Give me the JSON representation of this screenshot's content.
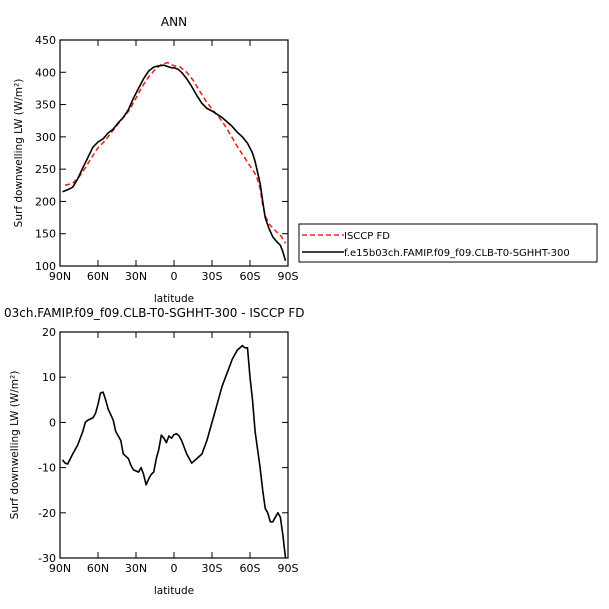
{
  "chart_data": [
    {
      "type": "line",
      "title": "ANN",
      "xlabel": "latitude",
      "ylabel": "Surf downwelling LW (W/m²)",
      "x_ticks": [
        "90N",
        "60N",
        "30N",
        "0",
        "30S",
        "60S",
        "90S"
      ],
      "x_tick_values": [
        90,
        60,
        30,
        0,
        -30,
        -60,
        -90
      ],
      "xlim": [
        90,
        -90
      ],
      "ylim": [
        100,
        450
      ],
      "y_ticks": [
        100,
        150,
        200,
        250,
        300,
        350,
        400,
        450
      ],
      "grid": false,
      "legend_placement": "right",
      "series": [
        {
          "name": "ISCCP FD",
          "color": "#e8261e",
          "dash": "dashed",
          "x": [
            86,
            80,
            75,
            70,
            65,
            60,
            55,
            50,
            45,
            40,
            35,
            30,
            25,
            20,
            15,
            10,
            5,
            0,
            -5,
            -10,
            -15,
            -20,
            -25,
            -30,
            -35,
            -40,
            -45,
            -50,
            -55,
            -60,
            -65,
            -68,
            -70,
            -72,
            -75,
            -80,
            -85,
            -88
          ],
          "y": [
            225,
            228,
            238,
            252,
            268,
            283,
            293,
            305,
            318,
            330,
            342,
            360,
            378,
            393,
            404,
            412,
            415,
            410,
            408,
            400,
            388,
            372,
            356,
            343,
            332,
            318,
            302,
            285,
            270,
            255,
            240,
            220,
            195,
            178,
            165,
            155,
            145,
            135
          ]
        },
        {
          "name": "f.e15b03ch.FAMIP.f09_f09.CLB-T0-SGHHT-300",
          "color": "#000000",
          "dash": "solid",
          "x": [
            88,
            84,
            80,
            76,
            72,
            68,
            64,
            60,
            56,
            52,
            48,
            44,
            40,
            36,
            32,
            28,
            24,
            20,
            16,
            12,
            8,
            5,
            2,
            0,
            -3,
            -6,
            -10,
            -14,
            -18,
            -22,
            -26,
            -30,
            -34,
            -38,
            -42,
            -46,
            -50,
            -54,
            -58,
            -62,
            -64,
            -66,
            -68,
            -70,
            -72,
            -75,
            -78,
            -81,
            -84,
            -86,
            -88
          ],
          "y": [
            215,
            218,
            222,
            235,
            252,
            268,
            284,
            292,
            297,
            306,
            312,
            322,
            330,
            342,
            360,
            375,
            390,
            402,
            408,
            410,
            411,
            409,
            407,
            407,
            405,
            400,
            390,
            378,
            364,
            352,
            344,
            340,
            335,
            330,
            323,
            316,
            307,
            300,
            290,
            275,
            262,
            245,
            228,
            200,
            175,
            158,
            145,
            138,
            132,
            122,
            108
          ]
        }
      ]
    },
    {
      "type": "line",
      "title": "03ch.FAMIP.f09_f09.CLB-T0-SGHHT-300 - ISCCP FD",
      "xlabel": "latitude",
      "ylabel": "Surf downwelling LW (W/m²)",
      "x_ticks": [
        "90N",
        "60N",
        "30N",
        "0",
        "30S",
        "60S",
        "90S"
      ],
      "x_tick_values": [
        90,
        60,
        30,
        0,
        -30,
        -60,
        -90
      ],
      "xlim": [
        90,
        -90
      ],
      "ylim": [
        -30,
        20
      ],
      "y_ticks": [
        -30,
        -20,
        -10,
        0,
        10,
        20
      ],
      "grid": false,
      "series": [
        {
          "color": "#000000",
          "dash": "solid",
          "x": [
            88,
            86,
            84,
            80,
            76,
            72,
            70,
            68,
            64,
            62,
            60,
            58,
            56,
            54,
            52,
            48,
            46,
            42,
            40,
            38,
            36,
            34,
            32,
            28,
            26,
            24,
            22,
            20,
            18,
            16,
            14,
            12,
            10,
            8,
            6,
            4,
            2,
            0,
            -2,
            -4,
            -6,
            -10,
            -14,
            -18,
            -22,
            -26,
            -30,
            -34,
            -38,
            -42,
            -46,
            -50,
            -54,
            -56,
            -58,
            -60,
            -62,
            -64,
            -66,
            -68,
            -70,
            -72,
            -74,
            -76,
            -78,
            -80,
            -82,
            -84,
            -86,
            -88
          ],
          "y": [
            -8.3,
            -9,
            -9.2,
            -7,
            -5,
            -2,
            0,
            0.5,
            1,
            2,
            4,
            6.5,
            6.7,
            5,
            3,
            0.5,
            -2,
            -4,
            -7,
            -7.5,
            -8,
            -9.5,
            -10.5,
            -11,
            -10,
            -11.5,
            -13.8,
            -12.5,
            -11.5,
            -11,
            -8,
            -6,
            -2.8,
            -3.5,
            -4.5,
            -3,
            -3.5,
            -2.7,
            -2.5,
            -3,
            -4,
            -7,
            -9,
            -8,
            -7,
            -4,
            0,
            4,
            8,
            11,
            14,
            16,
            17,
            16.5,
            16.5,
            10,
            5,
            -2,
            -6,
            -10,
            -15,
            -19,
            -20,
            -22,
            -22,
            -21,
            -20,
            -21,
            -25,
            -30
          ]
        }
      ]
    }
  ]
}
